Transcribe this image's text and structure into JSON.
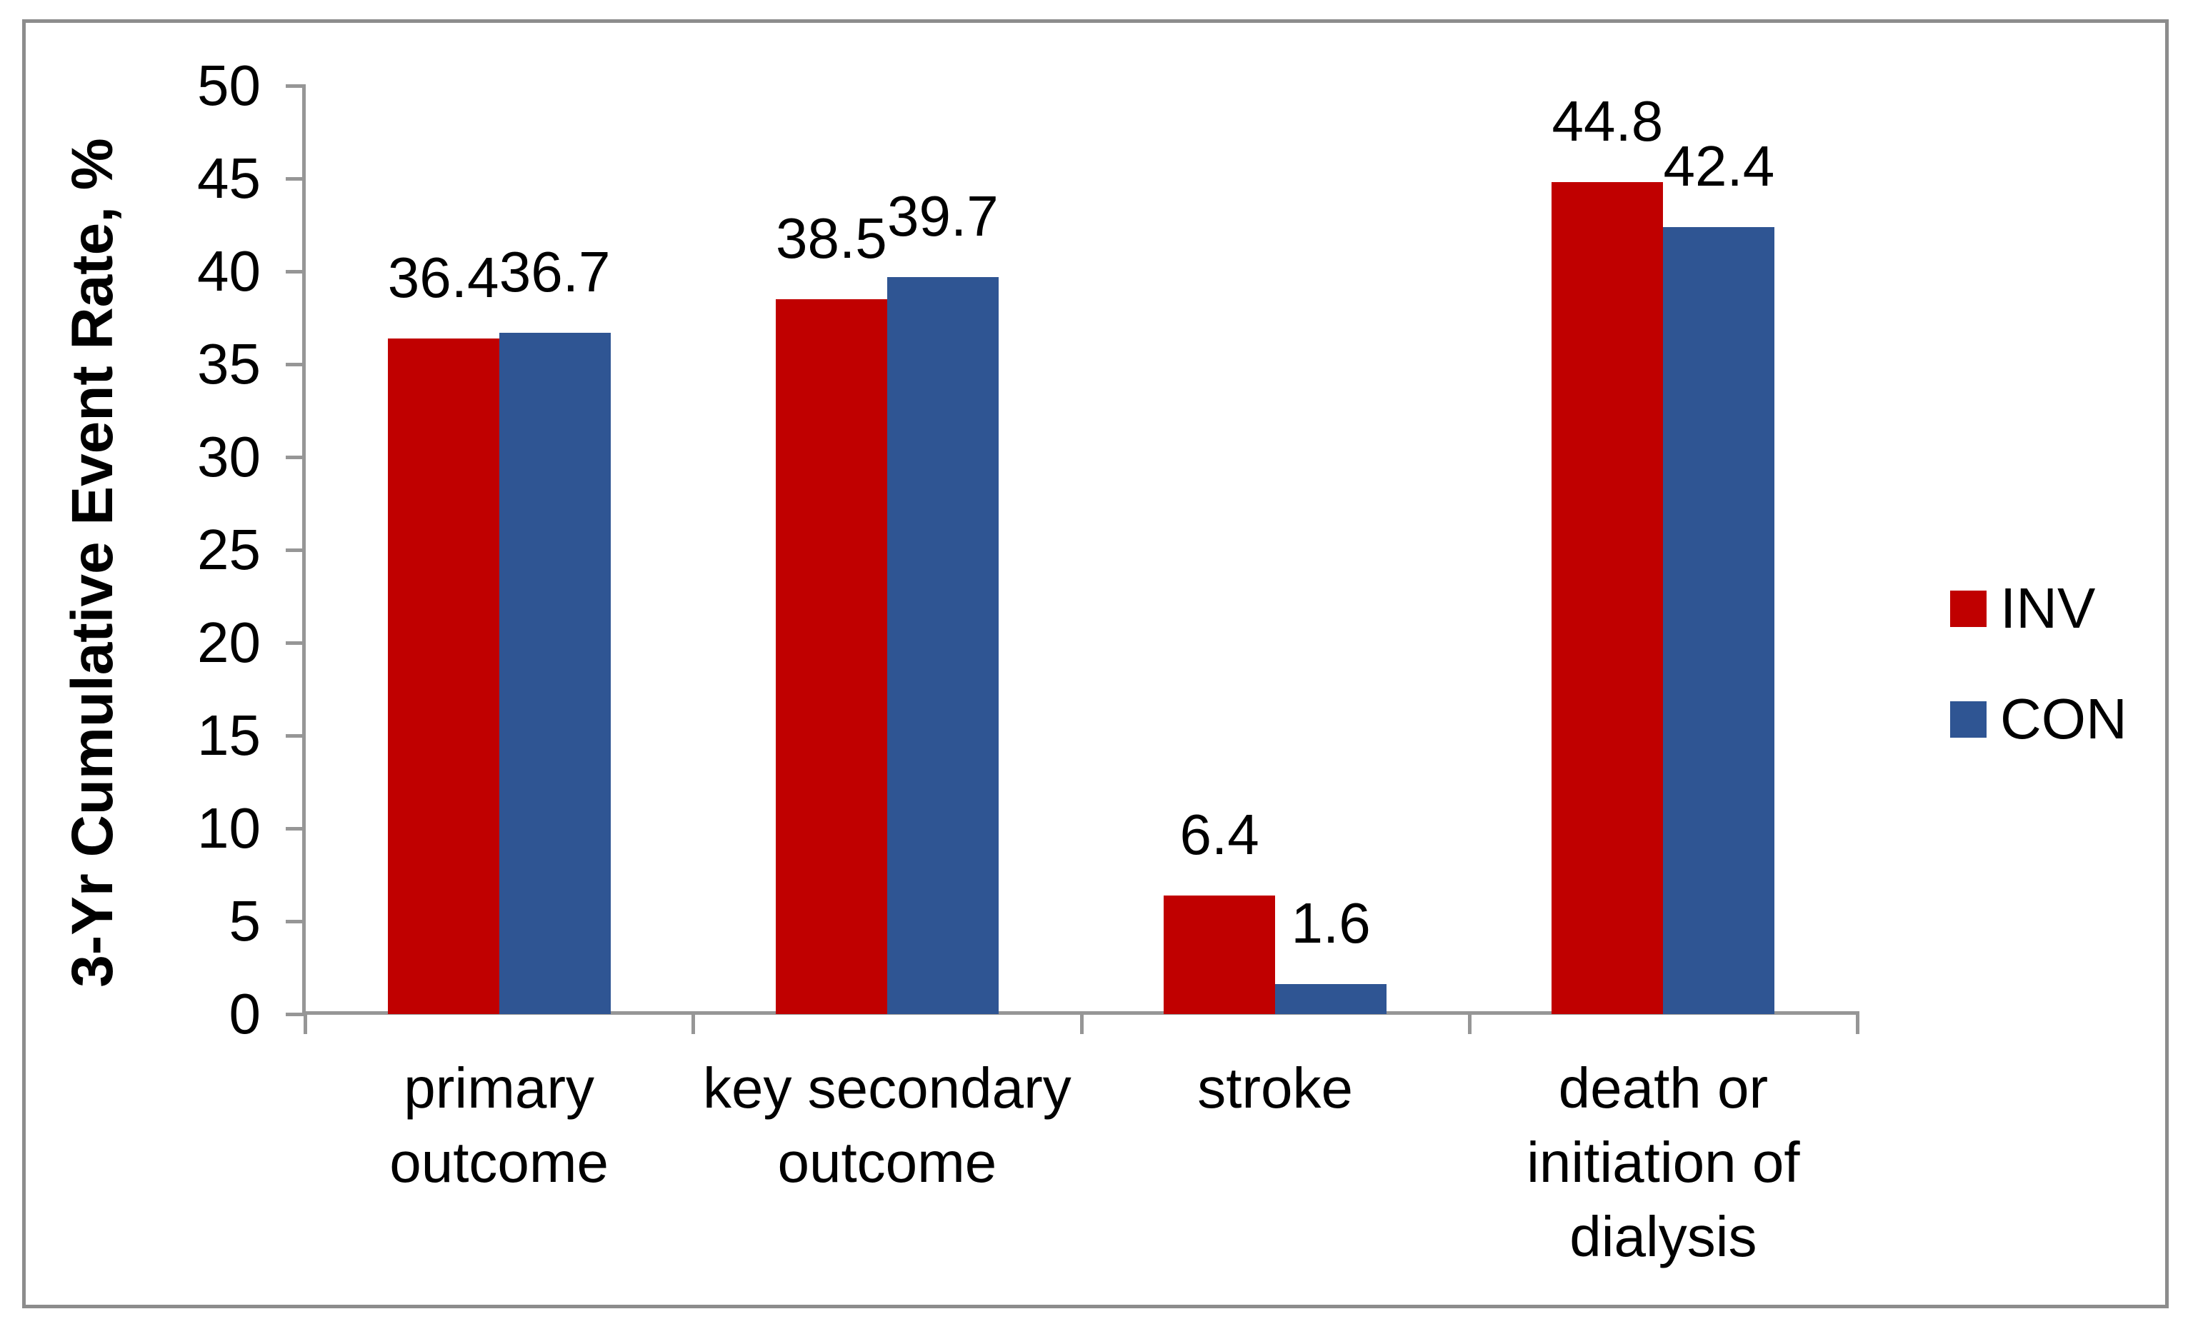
{
  "chart_data": {
    "type": "bar",
    "title": "",
    "categories": [
      "primary\noutcome",
      "key secondary\noutcome",
      "stroke",
      "death or\ninitiation of\ndialysis"
    ],
    "series": [
      {
        "name": "INV",
        "color": "#C00000",
        "values": [
          36.4,
          38.5,
          6.4,
          44.8
        ]
      },
      {
        "name": "CON",
        "color": "#2F5593",
        "values": [
          36.7,
          39.7,
          1.6,
          42.4
        ]
      }
    ],
    "data_labels": [
      [
        "36.4",
        "38.5",
        "6.4",
        "44.8"
      ],
      [
        "36.7",
        "39.7",
        "1.6",
        "42.4"
      ]
    ],
    "xlabel": "",
    "ylabel": "3-Yr Cumulative Event Rate, %",
    "ylim": [
      0,
      50
    ],
    "yticks": [
      "0",
      "5",
      "10",
      "15",
      "20",
      "25",
      "30",
      "35",
      "40",
      "45",
      "50"
    ],
    "grid": false,
    "legend_position": "right",
    "legend": [
      "INV",
      "CON"
    ]
  },
  "colors": {
    "inv": "#C00000",
    "con": "#2F5593",
    "axis": "#969696",
    "frame_border": "#8C8C8C",
    "background": "#FFFFFF",
    "text": "#000000"
  }
}
